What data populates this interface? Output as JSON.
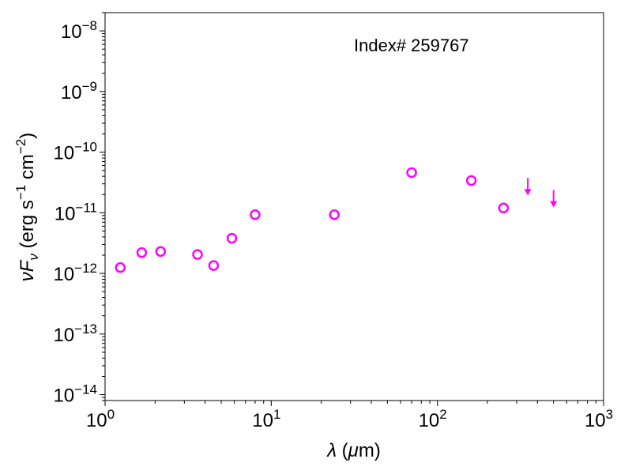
{
  "chart_data": {
    "type": "scatter",
    "title": "",
    "annotation": "Index# 259767",
    "xlabel": "λ (μm)",
    "ylabel": "νF_ν (erg s⁻¹ cm⁻²)",
    "xscale": "log",
    "yscale": "log",
    "xlim": [
      1,
      1000
    ],
    "ylim": [
      8e-15,
      2e-08
    ],
    "x_ticks": [
      {
        "base": "10",
        "exp": "0"
      },
      {
        "base": "10",
        "exp": "1"
      },
      {
        "base": "10",
        "exp": "2"
      },
      {
        "base": "10",
        "exp": "3"
      }
    ],
    "y_ticks": [
      {
        "base": "10",
        "exp": "−14"
      },
      {
        "base": "10",
        "exp": "−13"
      },
      {
        "base": "10",
        "exp": "−12"
      },
      {
        "base": "10",
        "exp": "−11"
      },
      {
        "base": "10",
        "exp": "−10"
      },
      {
        "base": "10",
        "exp": "−9"
      },
      {
        "base": "10",
        "exp": "−8"
      }
    ],
    "grid": false,
    "color": "#ff00ff",
    "series": [
      {
        "marker": "open-circle",
        "x": [
          1.235,
          1.662,
          2.159,
          3.6,
          4.5,
          5.8,
          8.0,
          24,
          70,
          160,
          250
        ],
        "y": [
          1.25e-12,
          2.2e-12,
          2.3e-12,
          2.05e-12,
          1.35e-12,
          3.8e-12,
          9.3e-12,
          9.3e-12,
          4.6e-11,
          3.4e-11,
          1.2e-11
        ]
      },
      {
        "marker": "upper-limit-arrow",
        "x": [
          350,
          500
        ],
        "y": [
          2.7e-11,
          1.7e-11
        ]
      }
    ]
  }
}
